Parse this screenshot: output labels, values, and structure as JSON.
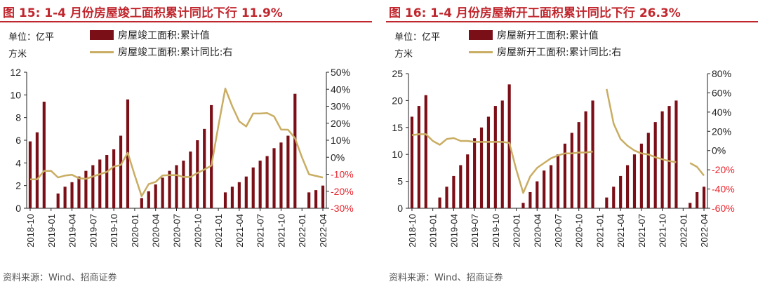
{
  "chart_data": [
    {
      "type": "bar",
      "title": "图 15:  1-4 月份房屋竣工面积累计同比下行 11.9%",
      "unit_label": "单位：亿平方米",
      "source": "资料来源：Wind、招商证券",
      "categories": [
        "2018-10",
        "2018-11",
        "2018-12",
        "2019-01",
        "2019-02",
        "2019-03",
        "2019-04",
        "2019-05",
        "2019-06",
        "2019-07",
        "2019-08",
        "2019-09",
        "2019-10",
        "2019-11",
        "2019-12",
        "2020-01",
        "2020-02",
        "2020-03",
        "2020-04",
        "2020-05",
        "2020-06",
        "2020-07",
        "2020-08",
        "2020-09",
        "2020-10",
        "2020-11",
        "2020-12",
        "2021-01",
        "2021-02",
        "2021-03",
        "2021-04",
        "2021-05",
        "2021-06",
        "2021-07",
        "2021-08",
        "2021-09",
        "2021-10",
        "2021-11",
        "2021-12",
        "2022-01",
        "2022-02",
        "2022-03",
        "2022-04"
      ],
      "tick_labels": [
        "2018-10",
        "2019-01",
        "2019-04",
        "2019-07",
        "2019-10",
        "2020-01",
        "2020-04",
        "2020-07",
        "2020-10",
        "2021-01",
        "2021-04",
        "2021-07",
        "2021-10",
        "2022-01",
        "2022-04"
      ],
      "series": [
        {
          "name": "房屋竣工面积:累计值",
          "type": "bar",
          "axis": "left",
          "color": "#7b0f17",
          "values": [
            5.9,
            6.7,
            9.4,
            null,
            1.3,
            1.9,
            2.3,
            2.8,
            3.3,
            3.8,
            4.3,
            4.7,
            5.2,
            6.4,
            9.6,
            null,
            0.9,
            1.5,
            2.1,
            2.7,
            3.3,
            3.8,
            4.2,
            5.0,
            6.0,
            7.0,
            9.1,
            null,
            1.4,
            1.9,
            2.3,
            2.8,
            3.6,
            4.2,
            4.6,
            5.3,
            5.8,
            6.4,
            10.1,
            null,
            1.4,
            1.6,
            2.0
          ]
        },
        {
          "name": "房屋竣工面积:累计同比:右",
          "type": "line",
          "axis": "right",
          "color": "#c9ad63",
          "values": [
            -13,
            -13,
            -8,
            -8,
            -11.9,
            -10.8,
            -10.3,
            -12.4,
            -12.7,
            -11.3,
            -10,
            -8.6,
            -5.5,
            -4.5,
            2.6,
            -10.5,
            -22.9,
            -15.8,
            -14.5,
            -10.7,
            -10.5,
            -10.5,
            -11.6,
            -11.6,
            -9.2,
            -7.2,
            -4.9,
            18.3,
            40.4,
            30,
            21.1,
            18.1,
            25.7,
            25.7,
            26,
            24,
            16.3,
            16.2,
            11.2,
            0,
            -10,
            -11,
            -11.9
          ]
        }
      ],
      "left_axis": {
        "min": 0,
        "max": 12,
        "ticks": [
          0,
          2,
          4,
          6,
          8,
          10,
          12
        ]
      },
      "right_axis": {
        "min": -30,
        "max": 50,
        "ticks": [
          -30,
          -20,
          -10,
          0,
          10,
          20,
          30,
          40,
          50
        ],
        "tick_suffix": "%"
      },
      "negative_label_color": "#e8242d",
      "legend_position": "top"
    },
    {
      "type": "bar",
      "title": "图 16:  1-4 月份房屋新开工面积累计同比下行 26.3%",
      "unit_label": "单位：亿平方米",
      "source": "资料来源：Wind、招商证券",
      "categories": [
        "2018-10",
        "2018-11",
        "2018-12",
        "2019-01",
        "2019-02",
        "2019-03",
        "2019-04",
        "2019-05",
        "2019-06",
        "2019-07",
        "2019-08",
        "2019-09",
        "2019-10",
        "2019-11",
        "2019-12",
        "2020-01",
        "2020-02",
        "2020-03",
        "2020-04",
        "2020-05",
        "2020-06",
        "2020-07",
        "2020-08",
        "2020-09",
        "2020-10",
        "2020-11",
        "2020-12",
        "2021-01",
        "2021-02",
        "2021-03",
        "2021-04",
        "2021-05",
        "2021-06",
        "2021-07",
        "2021-08",
        "2021-09",
        "2021-10",
        "2021-11",
        "2021-12",
        "2022-01",
        "2022-02",
        "2022-03",
        "2022-04"
      ],
      "tick_labels": [
        "2018-10",
        "2019-01",
        "2019-04",
        "2019-07",
        "2019-10",
        "2020-01",
        "2020-04",
        "2020-07",
        "2020-10",
        "2021-01",
        "2021-04",
        "2021-07",
        "2021-10",
        "2022-01",
        "2022-04"
      ],
      "series": [
        {
          "name": "房屋新开工面积:累计值",
          "type": "bar",
          "axis": "left",
          "color": "#7b0f17",
          "values": [
            17,
            19,
            21,
            null,
            2,
            4,
            6,
            8,
            10,
            13,
            15,
            17,
            19,
            20,
            23,
            null,
            1,
            3,
            5,
            7,
            8,
            10,
            12,
            14,
            16,
            18,
            20,
            null,
            2,
            4,
            6,
            8,
            10,
            12,
            14,
            16,
            18,
            19,
            20,
            null,
            1,
            3,
            4
          ]
        },
        {
          "name": "房屋新开工面积:累计同比:右",
          "type": "line",
          "axis": "right",
          "color": "#c9ad63",
          "values": [
            16,
            17,
            17,
            10,
            6,
            12,
            13,
            10,
            10,
            9,
            9,
            9,
            9,
            9,
            8,
            -20,
            -44,
            -27,
            -18,
            -13,
            -8,
            -5,
            -3,
            -3,
            -2,
            -2,
            -1,
            null,
            64,
            28,
            12,
            5,
            0,
            -3,
            -4,
            -7,
            -9,
            -11,
            -12,
            null,
            -13,
            -17,
            -26
          ]
        }
      ],
      "left_axis": {
        "min": 0,
        "max": 25,
        "ticks": [
          0,
          5,
          10,
          15,
          20,
          25
        ]
      },
      "right_axis": {
        "min": -60,
        "max": 80,
        "ticks": [
          -60,
          -40,
          -20,
          0,
          20,
          40,
          60,
          80
        ],
        "tick_suffix": "%"
      },
      "negative_label_color": "#e8242d",
      "legend_position": "top"
    }
  ]
}
